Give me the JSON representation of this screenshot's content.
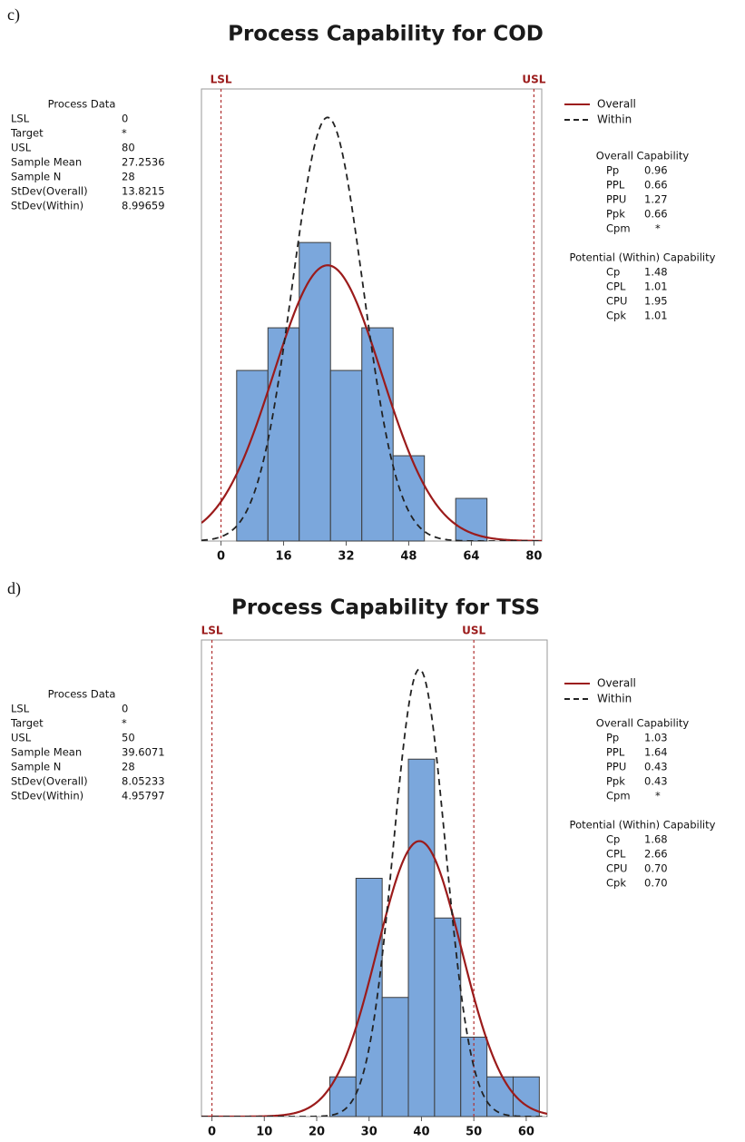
{
  "chart_data": [
    {
      "type": "histogram",
      "panel_label": "c)",
      "title": "Process Capability for COD",
      "bins": [
        4,
        12,
        20,
        28,
        36,
        44,
        52,
        60,
        68
      ],
      "counts": [
        4,
        5,
        7,
        4,
        5,
        2,
        0,
        1
      ],
      "color": "#7ba7dc",
      "xlim": [
        -5,
        82
      ],
      "xticks": [
        0,
        16,
        32,
        48,
        64,
        80
      ],
      "ylim": [
        0,
        10.6
      ],
      "spec_limits": [
        "LSL",
        "USL"
      ],
      "series": [
        {
          "name": "Overall",
          "color": "#9b1b1b",
          "dashed": false,
          "mean": 27.2536,
          "stdev": 13.8215
        },
        {
          "name": "Within",
          "color": "#222222",
          "dashed": true,
          "mean": 27.2536,
          "stdev": 8.99659
        }
      ],
      "process_data": {
        "title": "Process Data",
        "rows": [
          {
            "label": "LSL",
            "value": 0
          },
          {
            "label": "Target",
            "value": "*"
          },
          {
            "label": "USL",
            "value": 80
          },
          {
            "label": "Sample Mean",
            "value": 27.2536
          },
          {
            "label": "Sample N",
            "value": 28
          },
          {
            "label": "StDev(Overall)",
            "value": 13.8215
          },
          {
            "label": "StDev(Within)",
            "value": 8.99659
          }
        ]
      },
      "overall_capability": {
        "title": "Overall Capability",
        "rows": [
          {
            "label": "Pp",
            "value": 0.96
          },
          {
            "label": "PPL",
            "value": 0.66
          },
          {
            "label": "PPU",
            "value": 1.27
          },
          {
            "label": "Ppk",
            "value": 0.66
          },
          {
            "label": "Cpm",
            "value": "*"
          }
        ]
      },
      "within_capability": {
        "title": "Potential (Within) Capability",
        "rows": [
          {
            "label": "Cp",
            "value": 1.48
          },
          {
            "label": "CPL",
            "value": 1.01
          },
          {
            "label": "CPU",
            "value": 1.95
          },
          {
            "label": "Cpk",
            "value": 1.01
          }
        ]
      }
    },
    {
      "type": "histogram",
      "panel_label": "d)",
      "title": "Process Capability for TSS",
      "bins": [
        22.5,
        27.5,
        32.5,
        37.5,
        42.5,
        47.5,
        52.5,
        57.5,
        62.5
      ],
      "counts": [
        1,
        6,
        3,
        9,
        5,
        2,
        1,
        1
      ],
      "color": "#7ba7dc",
      "xlim": [
        -2,
        64
      ],
      "xticks": [
        0,
        10,
        20,
        30,
        40,
        50,
        60
      ],
      "ylim": [
        0,
        12
      ],
      "spec_limits": [
        "LSL",
        "USL"
      ],
      "series": [
        {
          "name": "Overall",
          "color": "#9b1b1b",
          "dashed": false,
          "mean": 39.6071,
          "stdev": 8.05233
        },
        {
          "name": "Within",
          "color": "#222222",
          "dashed": true,
          "mean": 39.6071,
          "stdev": 4.95797
        }
      ],
      "process_data": {
        "title": "Process Data",
        "rows": [
          {
            "label": "LSL",
            "value": 0
          },
          {
            "label": "Target",
            "value": "*"
          },
          {
            "label": "USL",
            "value": 50
          },
          {
            "label": "Sample Mean",
            "value": 39.6071
          },
          {
            "label": "Sample N",
            "value": 28
          },
          {
            "label": "StDev(Overall)",
            "value": 8.05233
          },
          {
            "label": "StDev(Within)",
            "value": 4.95797
          }
        ]
      },
      "overall_capability": {
        "title": "Overall Capability",
        "rows": [
          {
            "label": "Pp",
            "value": 1.03
          },
          {
            "label": "PPL",
            "value": 1.64
          },
          {
            "label": "PPU",
            "value": 0.43
          },
          {
            "label": "Ppk",
            "value": 0.43
          },
          {
            "label": "Cpm",
            "value": "*"
          }
        ]
      },
      "within_capability": {
        "title": "Potential (Within) Capability",
        "rows": [
          {
            "label": "Cp",
            "value": 1.68
          },
          {
            "label": "CPL",
            "value": 2.66
          },
          {
            "label": "CPU",
            "value": {
              "value": 0.7,
              "label": "0.70"
            }
          },
          {
            "label": "Cpk",
            "value": {
              "value": 0.7,
              "label": "0.70"
            }
          }
        ]
      }
    }
  ]
}
